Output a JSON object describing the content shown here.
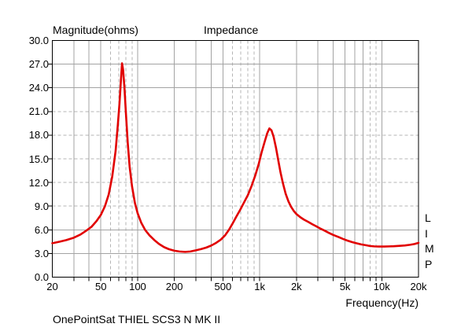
{
  "titles": {
    "magnitude": "Magnitude(ohms)",
    "impedance": "Impedance"
  },
  "axes": {
    "xlabel": "Frequency(Hz)",
    "y_tick_labels": [
      "30.0",
      "27.0",
      "24.0",
      "21.0",
      "18.0",
      "15.0",
      "12.0",
      "9.0",
      "6.0",
      "3.0",
      "0.0"
    ],
    "y_tick_values": [
      30,
      27,
      24,
      21,
      18,
      15,
      12,
      9,
      6,
      3,
      0
    ],
    "x_tick_labels": [
      "20",
      "50",
      "100",
      "200",
      "500",
      "1k",
      "2k",
      "5k",
      "10k",
      "20k"
    ],
    "x_tick_values": [
      20,
      50,
      100,
      200,
      500,
      1000,
      2000,
      5000,
      10000,
      20000
    ]
  },
  "watermark": {
    "letters": [
      "L",
      "I",
      "M",
      "P"
    ]
  },
  "footer": {
    "caption": "OnePointSat THIEL SCS3 N MK II"
  },
  "colors": {
    "curve": "#e10000",
    "grid_solid": "#a3a3a3",
    "grid_dashed": "#b4b4b4",
    "border": "#000000",
    "text": "#000000",
    "background": "#ffffff"
  },
  "chart_data": {
    "type": "line",
    "title": "Impedance",
    "ylabel": "Magnitude(ohms)",
    "xlabel": "Frequency(Hz)",
    "x_scale": "log",
    "xlim": [
      20,
      20000
    ],
    "ylim": [
      0,
      30
    ],
    "y_tick_step": 3,
    "x_ticks": [
      20,
      50,
      100,
      200,
      500,
      1000,
      2000,
      5000,
      10000,
      20000
    ],
    "legend": "none",
    "grid": {
      "x_solid": [
        30,
        40,
        50,
        100,
        200,
        300,
        400,
        500,
        1000,
        2000,
        3000,
        4000,
        5000,
        6000,
        7000,
        10000
      ],
      "x_dashed": [
        60,
        70,
        80,
        90,
        600,
        700,
        800,
        900,
        8000,
        9000
      ],
      "y_solid": [
        3,
        6,
        24,
        27
      ],
      "y_dashed": [
        9,
        12,
        15,
        18,
        21
      ]
    },
    "series": [
      {
        "name": "impedance-magnitude",
        "color": "#e10000",
        "peaks": [
          {
            "hz": 74.5,
            "ohms": 27.1
          },
          {
            "hz": 1200,
            "ohms": 18.9
          }
        ],
        "points": [
          [
            20,
            4.3
          ],
          [
            23,
            4.5
          ],
          [
            26,
            4.7
          ],
          [
            30,
            5.0
          ],
          [
            34,
            5.4
          ],
          [
            38,
            5.9
          ],
          [
            42,
            6.4
          ],
          [
            46,
            7.1
          ],
          [
            50,
            7.9
          ],
          [
            54,
            9.0
          ],
          [
            58,
            10.5
          ],
          [
            62,
            12.8
          ],
          [
            66,
            16.0
          ],
          [
            69,
            19.5
          ],
          [
            71,
            22.0
          ],
          [
            73,
            25.0
          ],
          [
            74.5,
            27.1
          ],
          [
            76,
            26.3
          ],
          [
            78,
            24.0
          ],
          [
            80,
            21.0
          ],
          [
            83,
            17.0
          ],
          [
            86,
            14.0
          ],
          [
            90,
            11.5
          ],
          [
            95,
            9.4
          ],
          [
            100,
            8.1
          ],
          [
            107,
            6.9
          ],
          [
            115,
            6.0
          ],
          [
            125,
            5.3
          ],
          [
            137,
            4.7
          ],
          [
            150,
            4.2
          ],
          [
            165,
            3.8
          ],
          [
            180,
            3.55
          ],
          [
            200,
            3.35
          ],
          [
            220,
            3.25
          ],
          [
            245,
            3.2
          ],
          [
            270,
            3.25
          ],
          [
            300,
            3.4
          ],
          [
            330,
            3.55
          ],
          [
            365,
            3.75
          ],
          [
            400,
            4.0
          ],
          [
            440,
            4.35
          ],
          [
            480,
            4.75
          ],
          [
            520,
            5.3
          ],
          [
            560,
            6.0
          ],
          [
            600,
            6.8
          ],
          [
            645,
            7.7
          ],
          [
            690,
            8.5
          ],
          [
            740,
            9.4
          ],
          [
            800,
            10.4
          ],
          [
            860,
            11.6
          ],
          [
            920,
            12.9
          ],
          [
            980,
            14.3
          ],
          [
            1040,
            15.9
          ],
          [
            1100,
            17.2
          ],
          [
            1150,
            18.2
          ],
          [
            1200,
            18.85
          ],
          [
            1250,
            18.6
          ],
          [
            1300,
            17.8
          ],
          [
            1360,
            16.4
          ],
          [
            1420,
            14.8
          ],
          [
            1480,
            13.3
          ],
          [
            1550,
            11.9
          ],
          [
            1630,
            10.6
          ],
          [
            1720,
            9.6
          ],
          [
            1810,
            8.9
          ],
          [
            1900,
            8.4
          ],
          [
            2000,
            8.0
          ],
          [
            2150,
            7.6
          ],
          [
            2300,
            7.3
          ],
          [
            2500,
            7.0
          ],
          [
            2700,
            6.7
          ],
          [
            2900,
            6.45
          ],
          [
            3100,
            6.2
          ],
          [
            3400,
            5.9
          ],
          [
            3700,
            5.6
          ],
          [
            4000,
            5.35
          ],
          [
            4400,
            5.1
          ],
          [
            4800,
            4.85
          ],
          [
            5200,
            4.65
          ],
          [
            5700,
            4.45
          ],
          [
            6200,
            4.3
          ],
          [
            6800,
            4.15
          ],
          [
            7400,
            4.05
          ],
          [
            8000,
            3.95
          ],
          [
            8700,
            3.9
          ],
          [
            9500,
            3.88
          ],
          [
            10500,
            3.88
          ],
          [
            11500,
            3.9
          ],
          [
            12500,
            3.92
          ],
          [
            14000,
            3.97
          ],
          [
            15500,
            4.02
          ],
          [
            17000,
            4.1
          ],
          [
            18500,
            4.2
          ],
          [
            20000,
            4.35
          ]
        ]
      }
    ]
  }
}
